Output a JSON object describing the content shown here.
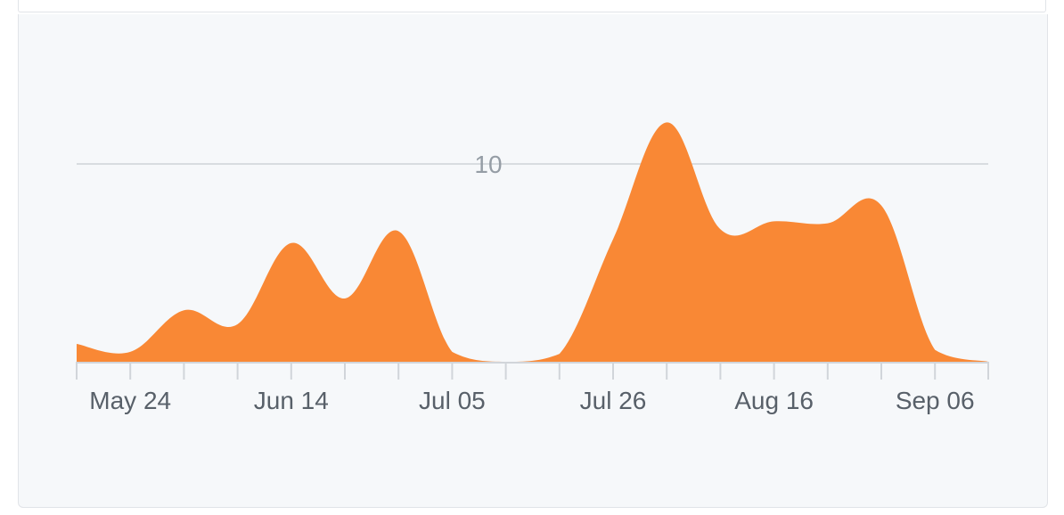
{
  "chart_data": {
    "type": "area",
    "x": [
      "May 17",
      "May 24",
      "May 31",
      "Jun 07",
      "Jun 14",
      "Jun 21",
      "Jun 28",
      "Jul 05",
      "Jul 12",
      "Jul 19",
      "Jul 26",
      "Aug 02",
      "Aug 09",
      "Aug 16",
      "Aug 23",
      "Aug 30",
      "Sep 06",
      "Sep 13"
    ],
    "values": [
      0.9,
      0.5,
      2.6,
      1.9,
      6.0,
      3.2,
      6.6,
      0.5,
      0.0,
      0.4,
      6.2,
      12.1,
      6.7,
      7.1,
      7.0,
      7.9,
      0.6,
      0.0
    ],
    "x_tick_labels": [
      "May 24",
      "Jun 14",
      "Jul 05",
      "Jul 26",
      "Aug 16",
      "Sep 06"
    ],
    "y_gridline": {
      "value": 10,
      "label": "10"
    },
    "ylim": [
      0,
      13
    ],
    "grid": true,
    "title": "",
    "xlabel": "",
    "ylabel": "",
    "colors": {
      "fill": "#f98835",
      "grid": "#d8dce0",
      "axis": "#d1d5da",
      "tick_text": "#586069",
      "grid_text": "#959da5",
      "background": "#f6f8fa"
    }
  }
}
